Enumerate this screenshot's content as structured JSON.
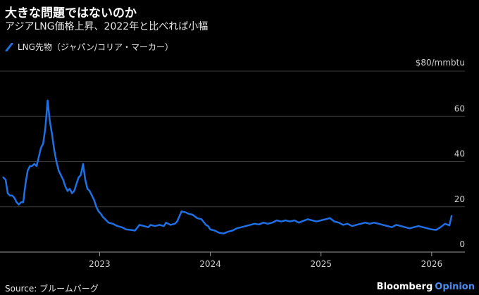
{
  "header": {
    "title": "大きな問題ではないのか",
    "subtitle": "アジアLNG価格上昇、2022年と比べれば小幅"
  },
  "footer": {
    "source": "Source: ブルームバーグ",
    "brand_name": "Bloomberg",
    "brand_sub": "Opinion"
  },
  "colors": {
    "series": "#1f6fe5",
    "grid": "#3a3a3a",
    "axis": "#9a9a9a",
    "background": "#000000"
  },
  "chart_data": {
    "type": "line",
    "title": "",
    "ylabel_top": "$80/mmbtu",
    "ylim": [
      0,
      80
    ],
    "y_ticks": [
      0,
      20,
      40,
      60
    ],
    "x_ticks": [
      "2023",
      "2024",
      "2025",
      "2026"
    ],
    "x_tick_values": [
      2023.0,
      2024.0,
      2025.0,
      2026.0
    ],
    "xlim": [
      2022.1,
      2026.3
    ],
    "grid": true,
    "series": [
      {
        "name": "LNG先物（ジャパン/コリア・マーカー）",
        "x": [
          2022.13,
          2022.15,
          2022.17,
          2022.19,
          2022.21,
          2022.23,
          2022.25,
          2022.27,
          2022.29,
          2022.31,
          2022.33,
          2022.35,
          2022.37,
          2022.39,
          2022.41,
          2022.43,
          2022.45,
          2022.47,
          2022.49,
          2022.51,
          2022.53,
          2022.55,
          2022.57,
          2022.59,
          2022.61,
          2022.63,
          2022.65,
          2022.67,
          2022.69,
          2022.71,
          2022.73,
          2022.75,
          2022.77,
          2022.79,
          2022.81,
          2022.83,
          2022.85,
          2022.87,
          2022.89,
          2022.91,
          2022.93,
          2022.95,
          2022.97,
          2022.99,
          2023.01,
          2023.03,
          2023.05,
          2023.08,
          2023.12,
          2023.16,
          2023.2,
          2023.24,
          2023.28,
          2023.32,
          2023.36,
          2023.4,
          2023.44,
          2023.46,
          2023.5,
          2023.54,
          2023.58,
          2023.6,
          2023.64,
          2023.68,
          2023.7,
          2023.74,
          2023.78,
          2023.8,
          2023.84,
          2023.88,
          2023.92,
          2023.96,
          2023.98,
          2024.0,
          2024.04,
          2024.08,
          2024.12,
          2024.16,
          2024.2,
          2024.24,
          2024.28,
          2024.32,
          2024.36,
          2024.4,
          2024.44,
          2024.48,
          2024.52,
          2024.56,
          2024.6,
          2024.64,
          2024.68,
          2024.72,
          2024.76,
          2024.8,
          2024.84,
          2024.88,
          2024.92,
          2024.96,
          2025.0,
          2025.04,
          2025.08,
          2025.12,
          2025.16,
          2025.2,
          2025.24,
          2025.28,
          2025.32,
          2025.36,
          2025.4,
          2025.44,
          2025.48,
          2025.52,
          2025.56,
          2025.6,
          2025.64,
          2025.68,
          2025.72,
          2025.76,
          2025.8,
          2025.84,
          2025.88,
          2025.92,
          2025.96,
          2026.0,
          2026.04,
          2026.08,
          2026.12,
          2026.16,
          2026.18
        ],
        "y": [
          33,
          32,
          26,
          25,
          25,
          24,
          22,
          21,
          22,
          22,
          30,
          36,
          38,
          38,
          39,
          38,
          42,
          46,
          48,
          55,
          67,
          58,
          52,
          45,
          40,
          36,
          34,
          32,
          29,
          27,
          28,
          26,
          27,
          30,
          33,
          34,
          39,
          32,
          28,
          27,
          25,
          23,
          20,
          18,
          17,
          15.5,
          14.5,
          13,
          12.5,
          11.5,
          11,
          10,
          9.8,
          9.5,
          12,
          11.5,
          11,
          12,
          11.5,
          12,
          11.5,
          13,
          12,
          12.5,
          13.5,
          18,
          17.5,
          17,
          16.5,
          15,
          14.5,
          12,
          11.5,
          10,
          9.5,
          8.5,
          8.2,
          9,
          9.5,
          10.5,
          11,
          11.5,
          12,
          12.5,
          12.2,
          13,
          12.5,
          13,
          14,
          13.5,
          14,
          13.5,
          14,
          13,
          13.8,
          14.5,
          14,
          13.5,
          14,
          14.5,
          15,
          13.5,
          13,
          12,
          12.5,
          11.5,
          12,
          12.5,
          13,
          12.5,
          13,
          12.5,
          12,
          11.5,
          11,
          12,
          11.5,
          11,
          10.5,
          11,
          11.5,
          11,
          10.5,
          10,
          9.8,
          11,
          12.5,
          11.8,
          16
        ]
      }
    ]
  }
}
